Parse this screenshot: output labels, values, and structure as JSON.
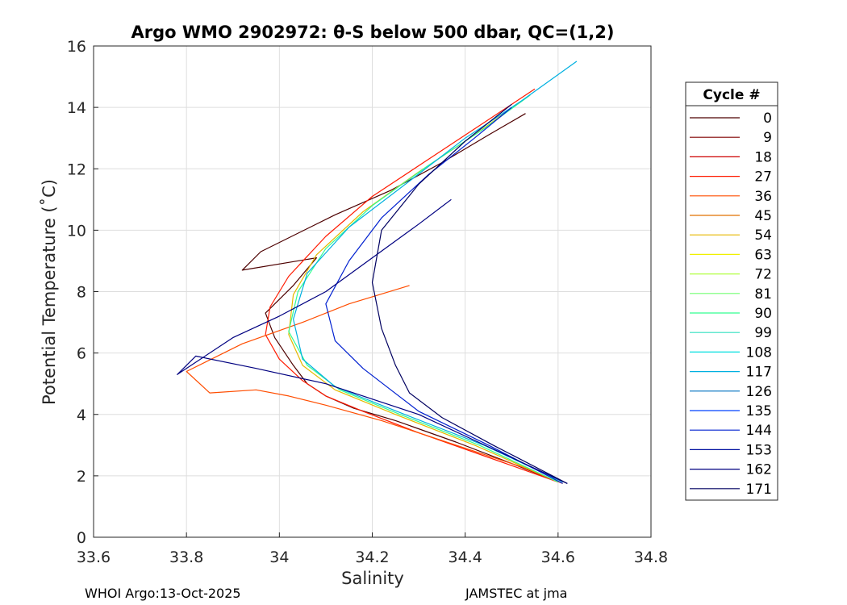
{
  "chart_data": {
    "type": "line",
    "title": "Argo WMO 2902972: θ-S below 500 dbar,  QC=(1,2)",
    "xlabel": "Salinity",
    "ylabel": "Potential Temperature (˚C)",
    "xlim": [
      33.6,
      34.8
    ],
    "ylim": [
      0,
      16
    ],
    "xticks": [
      33.6,
      33.8,
      34,
      34.2,
      34.4,
      34.6,
      34.8
    ],
    "xtick_labels": [
      "33.6",
      "33.8",
      "34",
      "34.2",
      "34.4",
      "34.6",
      "34.8"
    ],
    "yticks": [
      0,
      2,
      4,
      6,
      8,
      10,
      12,
      14,
      16
    ],
    "ytick_labels": [
      "0",
      "2",
      "4",
      "6",
      "8",
      "10",
      "12",
      "14",
      "16"
    ],
    "grid": true,
    "legend": {
      "title": "Cycle #",
      "placement": "outside-right",
      "entries": [
        "0",
        "9",
        "18",
        "27",
        "36",
        "45",
        "54",
        "63",
        "72",
        "81",
        "90",
        "99",
        "108",
        "117",
        "126",
        "135",
        "144",
        "153",
        "162",
        "171"
      ],
      "colors": [
        "#4d0000",
        "#800000",
        "#cc0000",
        "#ff1a00",
        "#ff4d00",
        "#e07000",
        "#e6b800",
        "#f0f000",
        "#b0ff40",
        "#70ff70",
        "#30ff90",
        "#30e0c0",
        "#00e0e0",
        "#00b0e0",
        "#0070c0",
        "#0040ff",
        "#0020d0",
        "#0010a0",
        "#000080",
        "#000060"
      ]
    },
    "series": [
      {
        "name": "0",
        "salinity": [
          34.53,
          34.45,
          34.35,
          34.24,
          34.12,
          33.96,
          33.92,
          34.08,
          34.03,
          33.97,
          33.99,
          34.03,
          34.06,
          34.1,
          34.16,
          34.25,
          34.38,
          34.5,
          34.6
        ],
        "temperature": [
          13.8,
          13.1,
          12.2,
          11.3,
          10.5,
          9.3,
          8.7,
          9.1,
          8.2,
          7.3,
          6.5,
          5.6,
          5.0,
          4.6,
          4.2,
          3.8,
          3.1,
          2.4,
          1.8
        ]
      },
      {
        "name": "27",
        "salinity": [
          34.55,
          34.45,
          34.33,
          34.2,
          34.1,
          34.02,
          33.98,
          33.97,
          34.0,
          34.05,
          34.1,
          34.18,
          34.3,
          34.45,
          34.6
        ],
        "temperature": [
          14.6,
          13.6,
          12.4,
          11.1,
          9.8,
          8.5,
          7.5,
          6.6,
          5.8,
          5.1,
          4.6,
          4.1,
          3.4,
          2.6,
          1.8
        ]
      },
      {
        "name": "36",
        "salinity": [
          34.28,
          34.15,
          34.05,
          33.92,
          33.8,
          33.85,
          33.95,
          34.02,
          34.1,
          34.22,
          34.38,
          34.52,
          34.61
        ],
        "temperature": [
          8.2,
          7.6,
          7.0,
          6.3,
          5.4,
          4.7,
          4.8,
          4.6,
          4.3,
          3.8,
          3.0,
          2.3,
          1.75
        ]
      },
      {
        "name": "54",
        "salinity": [
          34.52,
          34.42,
          34.3,
          34.18,
          34.08,
          34.03,
          34.02,
          34.05,
          34.12,
          34.25,
          34.42,
          34.6
        ],
        "temperature": [
          14.2,
          13.1,
          11.9,
          10.6,
          9.2,
          7.9,
          6.6,
          5.6,
          4.8,
          4.0,
          3.0,
          1.8
        ]
      },
      {
        "name": "90",
        "salinity": [
          34.54,
          34.44,
          34.32,
          34.2,
          34.1,
          34.04,
          34.02,
          34.06,
          34.13,
          34.26,
          34.43,
          34.6
        ],
        "temperature": [
          14.4,
          13.3,
          12.1,
          10.8,
          9.4,
          8.0,
          6.7,
          5.6,
          4.8,
          4.0,
          3.0,
          1.8
        ]
      },
      {
        "name": "117",
        "salinity": [
          34.64,
          34.52,
          34.4,
          34.28,
          34.15,
          34.06,
          34.03,
          34.05,
          34.12,
          34.27,
          34.44,
          34.61
        ],
        "temperature": [
          15.5,
          14.2,
          13.0,
          11.6,
          10.1,
          8.6,
          7.1,
          5.8,
          4.9,
          4.0,
          3.0,
          1.8
        ]
      },
      {
        "name": "144",
        "salinity": [
          34.5,
          34.42,
          34.32,
          34.22,
          34.15,
          34.1,
          34.12,
          34.18,
          34.24,
          34.3,
          34.45,
          34.61
        ],
        "temperature": [
          14.0,
          13.0,
          11.8,
          10.4,
          9.0,
          7.6,
          6.4,
          5.5,
          4.8,
          4.1,
          3.0,
          1.75
        ]
      },
      {
        "name": "162",
        "salinity": [
          34.37,
          34.3,
          34.2,
          34.1,
          34.0,
          33.9,
          33.78,
          33.82,
          33.95,
          34.1,
          34.3,
          34.62
        ],
        "temperature": [
          11.0,
          10.2,
          9.1,
          8.0,
          7.2,
          6.5,
          5.3,
          5.9,
          5.5,
          5.0,
          4.0,
          1.75
        ]
      },
      {
        "name": "171",
        "salinity": [
          34.5,
          34.4,
          34.3,
          34.22,
          34.2,
          34.22,
          34.25,
          34.28,
          34.35,
          34.46,
          34.62
        ],
        "temperature": [
          14.1,
          12.9,
          11.5,
          10.0,
          8.3,
          6.8,
          5.6,
          4.7,
          3.9,
          3.0,
          1.75
        ]
      }
    ]
  },
  "footer": {
    "left": "WHOI Argo:13-Oct-2025",
    "right": "JAMSTEC at jma"
  }
}
